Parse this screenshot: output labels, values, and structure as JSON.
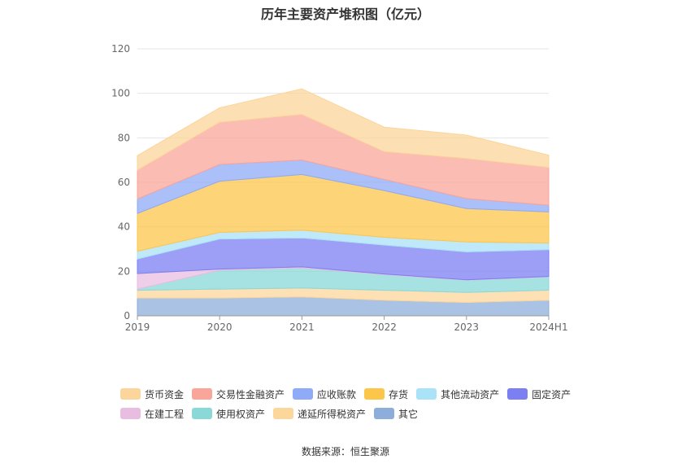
{
  "chart_data": {
    "type": "area",
    "stacked": true,
    "title": "历年主要资产堆积图（亿元）",
    "source": "数据来源：恒生聚源",
    "categories": [
      "2019",
      "2020",
      "2021",
      "2022",
      "2023",
      "2024H1"
    ],
    "ylim": [
      0,
      120
    ],
    "yticks": [
      0,
      20,
      40,
      60,
      80,
      100,
      120
    ],
    "grid": true,
    "legend_position": "bottom",
    "series": [
      {
        "name": "其它",
        "color": "#8daedb",
        "values": [
          8.0,
          8.0,
          8.5,
          7.0,
          6.0,
          7.0
        ]
      },
      {
        "name": "递延所得税资产",
        "color": "#fcd79b",
        "values": [
          3.5,
          4.0,
          4.0,
          4.5,
          4.5,
          4.5
        ]
      },
      {
        "name": "使用权资产",
        "color": "#8ad8d8",
        "values": [
          0.5,
          8.5,
          9.0,
          7.0,
          5.5,
          6.0
        ]
      },
      {
        "name": "在建工程",
        "color": "#e8bde0",
        "values": [
          7.0,
          0.5,
          0.5,
          0.3,
          0.2,
          0.2
        ]
      },
      {
        "name": "固定资产",
        "color": "#7b7ff1",
        "values": [
          6.5,
          13.5,
          13.0,
          13.0,
          12.5,
          12.0
        ]
      },
      {
        "name": "其他流动资产",
        "color": "#aae2f7",
        "values": [
          3.5,
          3.0,
          3.5,
          3.5,
          4.5,
          3.0
        ]
      },
      {
        "name": "存货",
        "color": "#fcc64b",
        "values": [
          17.0,
          23.0,
          25.0,
          21.0,
          15.0,
          14.0
        ]
      },
      {
        "name": "应收账款",
        "color": "#8faaf7",
        "values": [
          6.5,
          7.5,
          6.5,
          5.0,
          4.5,
          3.0
        ]
      },
      {
        "name": "交易性金融资产",
        "color": "#f9a59a",
        "values": [
          13.0,
          19.0,
          20.5,
          12.5,
          18.0,
          17.0
        ]
      },
      {
        "name": "货币资金",
        "color": "#fbd59b",
        "values": [
          6.5,
          6.5,
          11.5,
          11.0,
          10.5,
          5.5
        ]
      }
    ]
  },
  "legend": {
    "rows": [
      [
        {
          "label": "货币资金",
          "color": "#fbd59b"
        },
        {
          "label": "交易性金融资产",
          "color": "#f9a59a"
        },
        {
          "label": "应收账款",
          "color": "#8faaf7"
        },
        {
          "label": "存货",
          "color": "#fcc64b"
        },
        {
          "label": "其他流动资产",
          "color": "#aae2f7"
        },
        {
          "label": "固定资产",
          "color": "#7b7ff1"
        }
      ],
      [
        {
          "label": "在建工程",
          "color": "#e8bde0"
        },
        {
          "label": "使用权资产",
          "color": "#8ad8d8"
        },
        {
          "label": "递延所得税资产",
          "color": "#fcd79b"
        },
        {
          "label": "其它",
          "color": "#8daedb"
        }
      ]
    ]
  }
}
